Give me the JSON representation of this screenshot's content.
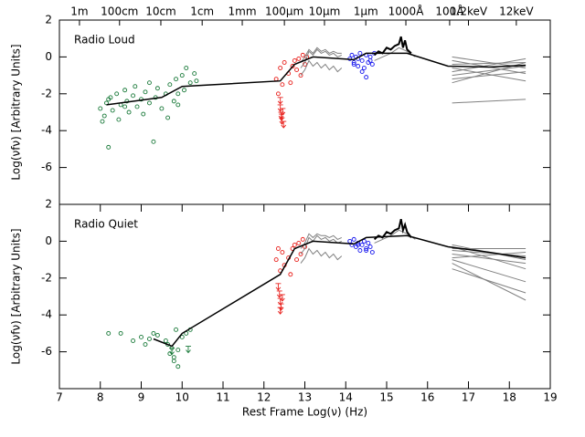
{
  "chart_data": [
    {
      "type": "scatter",
      "annotation": "Radio Loud",
      "ylabel": "Log(νfν) [Arbitrary Units]",
      "xlim": [
        7,
        19
      ],
      "ylim": [
        -8,
        2
      ],
      "yticks": [
        2,
        0,
        -2,
        -4,
        -6
      ],
      "x2ticks": [
        {
          "value": 7.49,
          "label": "1m"
        },
        {
          "value": 8.47,
          "label": "100cm"
        },
        {
          "value": 9.48,
          "label": "10cm"
        },
        {
          "value": 10.49,
          "label": "1cm"
        },
        {
          "value": 11.47,
          "label": "1mm"
        },
        {
          "value": 12.5,
          "label": "100μm"
        },
        {
          "value": 13.48,
          "label": "10μm"
        },
        {
          "value": 14.49,
          "label": "1μm"
        },
        {
          "value": 15.47,
          "label": "1000Å"
        },
        {
          "value": 16.54,
          "label": "100Å"
        },
        {
          "value": 17.0,
          "label": "1.2keV"
        },
        {
          "value": 18.17,
          "label": "12keV"
        }
      ],
      "series": [
        {
          "color": "#1a7a3a",
          "marker": "circle",
          "x": [
            8.0,
            8.1,
            8.15,
            8.2,
            8.25,
            8.3,
            8.4,
            8.45,
            8.5,
            8.6,
            8.65,
            8.7,
            8.8,
            8.85,
            8.9,
            9.0,
            9.05,
            9.1,
            9.2,
            9.3,
            9.35,
            9.4,
            9.5,
            9.6,
            9.65,
            9.7,
            9.8,
            9.85,
            9.9,
            10.0,
            10.05,
            10.1,
            10.2,
            10.3,
            10.35,
            8.2,
            8.6,
            9.2,
            9.9,
            8.05
          ],
          "values": [
            -2.8,
            -3.2,
            -2.5,
            -4.9,
            -2.2,
            -2.9,
            -2.0,
            -3.4,
            -2.6,
            -1.8,
            -2.4,
            -3.0,
            -2.1,
            -1.6,
            -2.7,
            -2.3,
            -3.1,
            -1.9,
            -2.5,
            -4.6,
            -2.2,
            -1.7,
            -2.8,
            -2.0,
            -3.3,
            -1.5,
            -2.4,
            -1.2,
            -2.0,
            -1.0,
            -1.8,
            -0.6,
            -1.4,
            -0.9,
            -1.3,
            -2.3,
            -2.7,
            -1.4,
            -2.6,
            -3.5
          ]
        },
        {
          "color": "#e8201c",
          "marker": "circle",
          "x": [
            12.3,
            12.35,
            12.4,
            12.45,
            12.5,
            12.6,
            12.65,
            12.7,
            12.75,
            12.8,
            12.85,
            12.9,
            12.95,
            13.0,
            13.05
          ],
          "values": [
            -1.2,
            -2.0,
            -0.6,
            -1.5,
            -0.3,
            -0.9,
            -1.4,
            -0.5,
            -0.2,
            -0.7,
            -0.1,
            -1.0,
            0.1,
            -0.4,
            0.0
          ]
        },
        {
          "color": "#e8201c",
          "marker": "arrow",
          "x": [
            12.4,
            12.42,
            12.44,
            12.46,
            12.48,
            12.4,
            12.43
          ],
          "values": [
            -2.6,
            -3.0,
            -3.3,
            -2.8,
            -3.5,
            -2.2,
            -3.1
          ]
        },
        {
          "color": "#808080",
          "marker": "line",
          "x": [
            12.9,
            13.0,
            13.1,
            13.2,
            13.3,
            13.4,
            13.5,
            13.6,
            13.7,
            13.8,
            13.9
          ],
          "values": [
            -0.6,
            -0.3,
            0.3,
            0.1,
            0.4,
            0.2,
            0.3,
            0.1,
            0.2,
            0.0,
            0.1
          ]
        },
        {
          "color": "#808080",
          "marker": "line",
          "x": [
            12.9,
            13.0,
            13.1,
            13.2,
            13.3,
            13.4,
            13.5,
            13.6,
            13.7,
            13.8,
            13.9
          ],
          "values": [
            -1.0,
            -0.7,
            -0.2,
            -0.5,
            -0.3,
            -0.6,
            -0.4,
            -0.7,
            -0.5,
            -0.8,
            -0.6
          ]
        },
        {
          "color": "#808080",
          "marker": "line",
          "x": [
            12.9,
            13.0,
            13.1,
            13.2,
            13.3,
            13.4,
            13.5,
            13.6,
            13.7,
            13.8,
            13.9
          ],
          "values": [
            -0.3,
            0.0,
            0.4,
            0.2,
            0.5,
            0.3,
            0.4,
            0.2,
            0.3,
            0.2,
            0.2
          ]
        },
        {
          "color": "#808080",
          "marker": "line",
          "x": [
            14.7,
            14.9,
            15.1,
            15.3,
            15.5,
            15.7
          ],
          "values": [
            -0.2,
            0.0,
            0.2,
            0.5,
            0.3,
            0.0
          ]
        },
        {
          "color": "#808080",
          "marker": "line",
          "x": [
            16.6,
            18.4
          ],
          "values": [
            -0.4,
            -0.3
          ]
        },
        {
          "color": "#808080",
          "marker": "line",
          "x": [
            16.6,
            18.4
          ],
          "values": [
            -0.8,
            -0.1
          ]
        },
        {
          "color": "#808080",
          "marker": "line",
          "x": [
            16.6,
            18.4
          ],
          "values": [
            -0.2,
            -0.9
          ]
        },
        {
          "color": "#808080",
          "marker": "line",
          "x": [
            16.6,
            18.4
          ],
          "values": [
            -1.0,
            -0.5
          ]
        },
        {
          "color": "#808080",
          "marker": "line",
          "x": [
            16.6,
            18.4
          ],
          "values": [
            0.0,
            -0.6
          ]
        },
        {
          "color": "#808080",
          "marker": "line",
          "x": [
            16.6,
            18.4
          ],
          "values": [
            -1.4,
            -0.3
          ]
        },
        {
          "color": "#808080",
          "marker": "line",
          "x": [
            16.6,
            18.4
          ],
          "values": [
            -0.6,
            -1.3
          ]
        },
        {
          "color": "#808080",
          "marker": "line",
          "x": [
            16.6,
            18.4
          ],
          "values": [
            -2.5,
            -2.3
          ]
        },
        {
          "color": "#808080",
          "marker": "line",
          "x": [
            16.6,
            18.4
          ],
          "values": [
            -1.2,
            -0.8
          ]
        },
        {
          "color": "#1a1aee",
          "marker": "circle",
          "x": [
            14.1,
            14.15,
            14.2,
            14.25,
            14.3,
            14.35,
            14.4,
            14.45,
            14.5,
            14.55,
            14.6,
            14.65,
            14.7,
            14.3,
            14.5,
            14.4,
            14.2,
            14.6
          ],
          "values": [
            -0.1,
            0.1,
            -0.3,
            0.0,
            -0.5,
            0.2,
            -0.2,
            -0.6,
            0.1,
            -0.3,
            0.0,
            -0.4,
            0.2,
            -0.1,
            -1.1,
            -0.8,
            -0.4,
            -0.2
          ]
        },
        {
          "color": "#000000",
          "marker": "line",
          "width": 2,
          "x": [
            14.7,
            14.8,
            14.9,
            15.0,
            15.1,
            15.2,
            15.3,
            15.35,
            15.4,
            15.45,
            15.5,
            15.6
          ],
          "values": [
            0.1,
            0.3,
            0.2,
            0.5,
            0.4,
            0.6,
            0.7,
            1.1,
            0.5,
            0.9,
            0.4,
            0.2
          ]
        },
        {
          "color": "#000000",
          "marker": "line",
          "width": 1.5,
          "x": [
            8.15,
            9.5,
            10.0,
            12.4,
            12.75,
            13.2,
            14.2,
            14.5,
            15.5,
            16.5,
            17.5,
            18.4
          ],
          "values": [
            -2.6,
            -2.2,
            -1.6,
            -1.3,
            -0.4,
            0.0,
            -0.15,
            0.2,
            0.2,
            -0.5,
            -0.55,
            -0.45
          ]
        }
      ]
    },
    {
      "type": "scatter",
      "annotation": "Radio Quiet",
      "ylabel": "Log(νfν) [Arbitrary Units]",
      "xlabel": "Rest Frame Log(ν) (Hz)",
      "xlim": [
        7,
        19
      ],
      "xticks": [
        7,
        8,
        9,
        10,
        11,
        12,
        13,
        14,
        15,
        16,
        17,
        18,
        19
      ],
      "ylim": [
        -8,
        2
      ],
      "yticks": [
        2,
        0,
        -2,
        -4,
        -6
      ],
      "series": [
        {
          "color": "#1a7a3a",
          "marker": "circle",
          "x": [
            8.2,
            8.5,
            8.8,
            9.0,
            9.1,
            9.2,
            9.3,
            9.4,
            9.6,
            9.7,
            9.75,
            9.8,
            9.85,
            9.9,
            10.0,
            10.1,
            10.2,
            9.65,
            9.8,
            9.9
          ],
          "values": [
            -5.0,
            -5.0,
            -5.4,
            -5.2,
            -5.6,
            -5.3,
            -5.0,
            -5.1,
            -5.4,
            -6.1,
            -5.8,
            -6.5,
            -4.8,
            -6.8,
            -5.2,
            -5.0,
            -4.8,
            -5.6,
            -6.3,
            -5.9
          ]
        },
        {
          "color": "#1a7a3a",
          "marker": "arrow",
          "x": [
            9.75,
            10.15
          ],
          "values": [
            -5.8,
            -5.7
          ]
        },
        {
          "color": "#e8201c",
          "marker": "circle",
          "x": [
            12.3,
            12.35,
            12.4,
            12.45,
            12.5,
            12.6,
            12.65,
            12.7,
            12.75,
            12.8,
            12.85,
            12.9,
            12.95,
            13.0
          ],
          "values": [
            -1.0,
            -0.4,
            -1.6,
            -0.6,
            -1.3,
            -0.9,
            -1.8,
            -0.4,
            -0.2,
            -1.0,
            -0.1,
            -0.7,
            0.1,
            -0.3
          ]
        },
        {
          "color": "#e8201c",
          "marker": "arrow",
          "x": [
            12.35,
            12.38,
            12.4,
            12.42,
            12.45,
            12.4
          ],
          "values": [
            -2.3,
            -2.7,
            -3.1,
            -3.4,
            -2.9,
            -3.6
          ]
        },
        {
          "color": "#808080",
          "marker": "line",
          "x": [
            12.9,
            13.0,
            13.1,
            13.2,
            13.3,
            13.4,
            13.5,
            13.6,
            13.7,
            13.8,
            13.9
          ],
          "values": [
            -0.7,
            -0.4,
            0.2,
            0.0,
            0.3,
            0.1,
            0.2,
            0.0,
            0.1,
            -0.1,
            0.0
          ]
        },
        {
          "color": "#808080",
          "marker": "line",
          "x": [
            12.9,
            13.0,
            13.1,
            13.2,
            13.3,
            13.4,
            13.5,
            13.6,
            13.7,
            13.8,
            13.9
          ],
          "values": [
            -1.2,
            -0.9,
            -0.4,
            -0.7,
            -0.5,
            -0.8,
            -0.6,
            -0.9,
            -0.7,
            -1.0,
            -0.8
          ]
        },
        {
          "color": "#808080",
          "marker": "line",
          "x": [
            12.9,
            13.0,
            13.1,
            13.2,
            13.3,
            13.4,
            13.5,
            13.6,
            13.7,
            13.8,
            13.9
          ],
          "values": [
            -0.4,
            -0.1,
            0.4,
            0.2,
            0.4,
            0.3,
            0.3,
            0.2,
            0.3,
            0.1,
            0.2
          ]
        },
        {
          "color": "#808080",
          "marker": "line",
          "x": [
            14.7,
            14.9,
            15.1,
            15.3,
            15.5,
            15.7
          ],
          "values": [
            -0.1,
            0.1,
            0.3,
            0.6,
            0.4,
            0.1
          ]
        },
        {
          "color": "#808080",
          "marker": "line",
          "x": [
            16.6,
            18.4
          ],
          "values": [
            -0.2,
            -1.0
          ]
        },
        {
          "color": "#808080",
          "marker": "line",
          "x": [
            16.6,
            18.4
          ],
          "values": [
            -0.5,
            -0.8
          ]
        },
        {
          "color": "#808080",
          "marker": "line",
          "x": [
            16.6,
            18.4
          ],
          "values": [
            -1.0,
            -2.2
          ]
        },
        {
          "color": "#808080",
          "marker": "line",
          "x": [
            16.6,
            18.4
          ],
          "values": [
            -1.2,
            -3.2
          ]
        },
        {
          "color": "#808080",
          "marker": "line",
          "x": [
            16.6,
            18.4
          ],
          "values": [
            -0.9,
            -0.6
          ]
        },
        {
          "color": "#808080",
          "marker": "line",
          "x": [
            16.6,
            18.4
          ],
          "values": [
            -0.3,
            -1.5
          ]
        },
        {
          "color": "#808080",
          "marker": "line",
          "x": [
            16.6,
            18.4
          ],
          "values": [
            -1.5,
            -2.8
          ]
        },
        {
          "color": "#808080",
          "marker": "line",
          "x": [
            16.6,
            18.4
          ],
          "values": [
            -0.7,
            -1.2
          ]
        },
        {
          "color": "#808080",
          "marker": "line",
          "x": [
            16.6,
            18.4
          ],
          "values": [
            -0.4,
            -0.4
          ]
        },
        {
          "color": "#1a1aee",
          "marker": "circle",
          "x": [
            14.1,
            14.15,
            14.2,
            14.25,
            14.3,
            14.35,
            14.4,
            14.45,
            14.5,
            14.55,
            14.6,
            14.65,
            14.3,
            14.5
          ],
          "values": [
            0.0,
            -0.2,
            0.1,
            -0.3,
            -0.1,
            -0.5,
            -0.2,
            0.0,
            -0.4,
            -0.1,
            -0.3,
            -0.6,
            -0.2,
            -0.5
          ]
        },
        {
          "color": "#000000",
          "marker": "line",
          "width": 2,
          "x": [
            14.7,
            14.8,
            14.9,
            15.0,
            15.1,
            15.2,
            15.3,
            15.35,
            15.4,
            15.45,
            15.5,
            15.6
          ],
          "values": [
            0.1,
            0.3,
            0.2,
            0.5,
            0.4,
            0.6,
            0.7,
            1.2,
            0.6,
            0.9,
            0.5,
            0.2
          ]
        },
        {
          "color": "#000000",
          "marker": "line",
          "width": 1.5,
          "x": [
            9.3,
            9.75,
            10.0,
            12.4,
            12.75,
            13.2,
            14.2,
            14.5,
            15.5,
            16.5,
            17.5,
            18.4
          ],
          "values": [
            -5.3,
            -5.7,
            -5.0,
            -1.8,
            -0.4,
            0.0,
            -0.15,
            0.2,
            0.3,
            -0.3,
            -0.6,
            -0.9
          ]
        }
      ]
    }
  ]
}
